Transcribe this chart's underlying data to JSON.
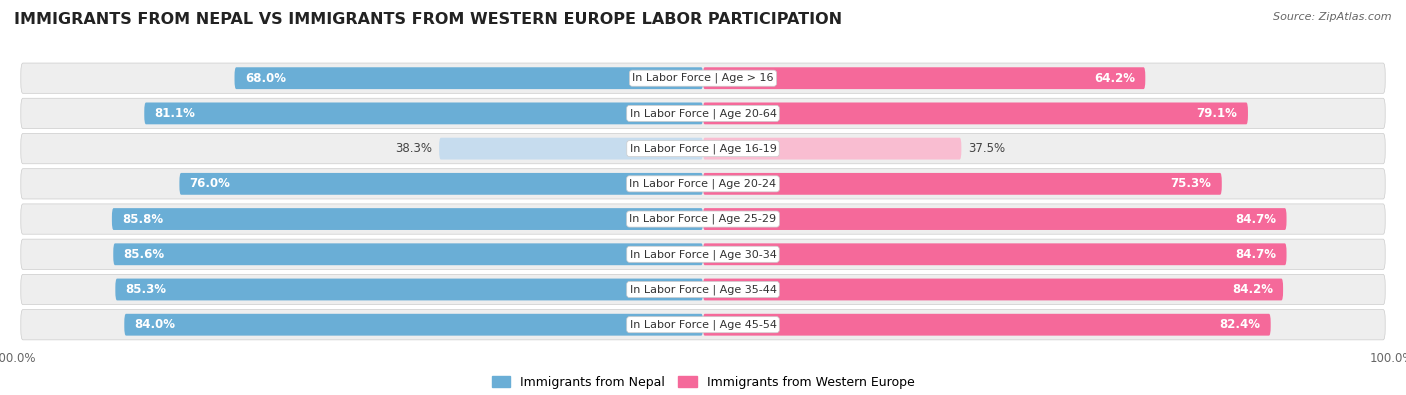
{
  "title": "IMMIGRANTS FROM NEPAL VS IMMIGRANTS FROM WESTERN EUROPE LABOR PARTICIPATION",
  "source": "Source: ZipAtlas.com",
  "categories": [
    "In Labor Force | Age > 16",
    "In Labor Force | Age 20-64",
    "In Labor Force | Age 16-19",
    "In Labor Force | Age 20-24",
    "In Labor Force | Age 25-29",
    "In Labor Force | Age 30-34",
    "In Labor Force | Age 35-44",
    "In Labor Force | Age 45-54"
  ],
  "nepal_values": [
    68.0,
    81.1,
    38.3,
    76.0,
    85.8,
    85.6,
    85.3,
    84.0
  ],
  "western_europe_values": [
    64.2,
    79.1,
    37.5,
    75.3,
    84.7,
    84.7,
    84.2,
    82.4
  ],
  "nepal_color": "#6aaed6",
  "nepal_color_light": "#c6dcee",
  "western_europe_color": "#f5699a",
  "western_europe_color_light": "#f9bdd1",
  "background_color": "#ffffff",
  "row_bg_color": "#eeeeee",
  "legend_nepal": "Immigrants from Nepal",
  "legend_western_europe": "Immigrants from Western Europe",
  "max_value": 100.0,
  "title_fontsize": 11.5,
  "label_fontsize": 8.5,
  "tick_fontsize": 8.5,
  "source_fontsize": 8,
  "legend_fontsize": 9
}
